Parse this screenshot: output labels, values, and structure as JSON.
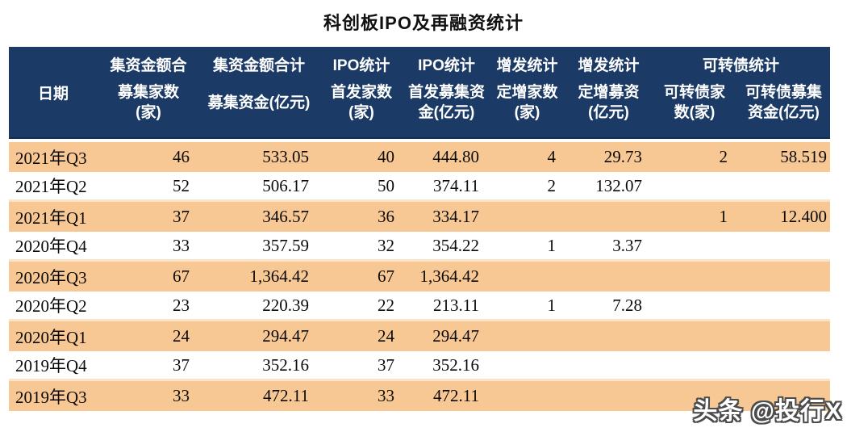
{
  "title": "科创板IPO及再融资统计",
  "watermark": "头条 @投行X",
  "colors": {
    "header_bg": "#1C3A66",
    "header_text": "#ffffff",
    "stripe_orange": "#F8C894",
    "stripe_white": "#ffffff",
    "body_text": "#0a0a0a"
  },
  "table": {
    "columns": [
      {
        "group": "",
        "lines": [
          "日期"
        ]
      },
      {
        "group": "集资金额合",
        "lines": [
          "募集家数",
          "(家)"
        ]
      },
      {
        "group": "集资金额合计",
        "lines": [
          "募集资金(亿元)"
        ]
      },
      {
        "group": "IPO统计",
        "lines": [
          "首发家数",
          "(家)"
        ]
      },
      {
        "group": "IPO统计",
        "lines": [
          "首发募集资",
          "金(亿元)"
        ]
      },
      {
        "group": "增发统计",
        "lines": [
          "定增家数",
          "(家)"
        ]
      },
      {
        "group": "增发统计",
        "lines": [
          "定增募资",
          "(亿元)"
        ]
      },
      {
        "group": "可转债统计",
        "lines": [
          "可转债家",
          "数(家)"
        ]
      },
      {
        "group": "可转债统计",
        "lines": [
          "可转债募集",
          "资金(亿元)"
        ]
      }
    ],
    "rows": [
      {
        "date": "2021年Q3",
        "values": [
          "46",
          "533.05",
          "40",
          "444.80",
          "4",
          "29.73",
          "2",
          "58.519"
        ]
      },
      {
        "date": "2021年Q2",
        "values": [
          "52",
          "506.17",
          "50",
          "374.11",
          "2",
          "132.07",
          "",
          ""
        ]
      },
      {
        "date": "2021年Q1",
        "values": [
          "37",
          "346.57",
          "36",
          "334.17",
          "",
          "",
          "1",
          "12.400"
        ]
      },
      {
        "date": "2020年Q4",
        "values": [
          "33",
          "357.59",
          "32",
          "354.22",
          "1",
          "3.37",
          "",
          ""
        ]
      },
      {
        "date": "2020年Q3",
        "values": [
          "67",
          "1,364.42",
          "67",
          "1,364.42",
          "",
          "",
          "",
          ""
        ]
      },
      {
        "date": "2020年Q2",
        "values": [
          "23",
          "220.39",
          "22",
          "213.11",
          "1",
          "7.28",
          "",
          ""
        ]
      },
      {
        "date": "2020年Q1",
        "values": [
          "24",
          "294.47",
          "24",
          "294.47",
          "",
          "",
          "",
          ""
        ]
      },
      {
        "date": "2019年Q4",
        "values": [
          "37",
          "352.16",
          "37",
          "352.16",
          "",
          "",
          "",
          ""
        ]
      },
      {
        "date": "2019年Q3",
        "values": [
          "33",
          "472.11",
          "33",
          "472.11",
          "",
          "",
          "",
          ""
        ]
      }
    ]
  },
  "chart_data": {
    "type": "table",
    "title": "科创板IPO及再融资统计",
    "columns": [
      "日期",
      "集资金额合计 募集家数(家)",
      "集资金额合计 募集资金(亿元)",
      "IPO统计 首发家数(家)",
      "IPO统计 首发募集资金(亿元)",
      "增发统计 定增家数(家)",
      "增发统计 定增募资(亿元)",
      "可转债统计 可转债家数(家)",
      "可转债统计 可转债募集资金(亿元)"
    ],
    "rows": [
      [
        "2021年Q3",
        46,
        533.05,
        40,
        444.8,
        4,
        29.73,
        2,
        58.519
      ],
      [
        "2021年Q2",
        52,
        506.17,
        50,
        374.11,
        2,
        132.07,
        null,
        null
      ],
      [
        "2021年Q1",
        37,
        346.57,
        36,
        334.17,
        null,
        null,
        1,
        12.4
      ],
      [
        "2020年Q4",
        33,
        357.59,
        32,
        354.22,
        1,
        3.37,
        null,
        null
      ],
      [
        "2020年Q3",
        67,
        1364.42,
        67,
        1364.42,
        null,
        null,
        null,
        null
      ],
      [
        "2020年Q2",
        23,
        220.39,
        22,
        213.11,
        1,
        7.28,
        null,
        null
      ],
      [
        "2020年Q1",
        24,
        294.47,
        24,
        294.47,
        null,
        null,
        null,
        null
      ],
      [
        "2019年Q4",
        37,
        352.16,
        37,
        352.16,
        null,
        null,
        null,
        null
      ],
      [
        "2019年Q3",
        33,
        472.11,
        33,
        472.11,
        null,
        null,
        null,
        null
      ]
    ]
  }
}
